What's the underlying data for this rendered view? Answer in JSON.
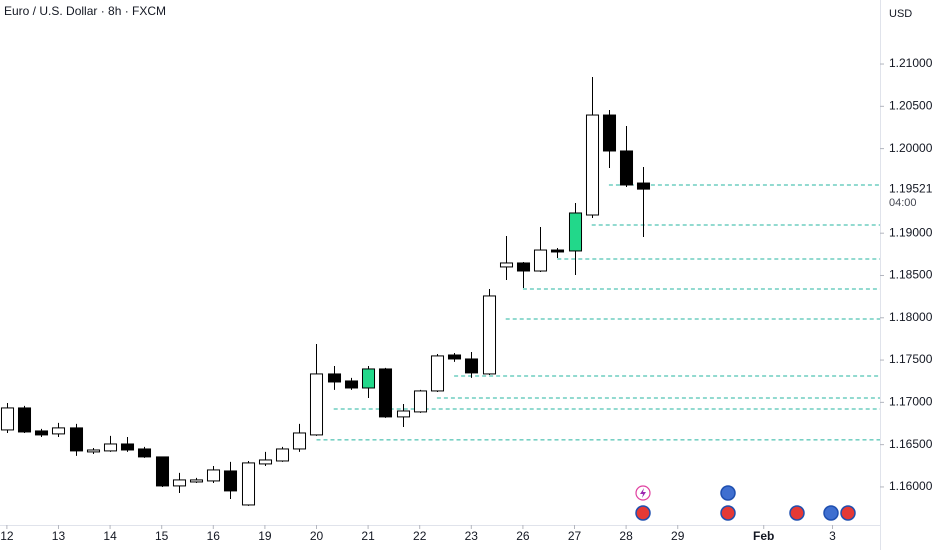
{
  "chart_data": {
    "type": "candlestick",
    "title": "Euro / U.S. Dollar · 8h · FXCM",
    "currency": "USD",
    "x": [
      0,
      1,
      2,
      3,
      4,
      5,
      6,
      7,
      8,
      9,
      10,
      11,
      12,
      13,
      14,
      15,
      16,
      17,
      18,
      19,
      20,
      21,
      22,
      23,
      24,
      25,
      26,
      27,
      28,
      29,
      30,
      31,
      32,
      33,
      34,
      35,
      36,
      37
    ],
    "open": [
      1.16674,
      1.16934,
      1.16662,
      1.16627,
      1.16698,
      1.16414,
      1.16426,
      1.16508,
      1.16449,
      1.16355,
      1.16012,
      1.16059,
      1.16071,
      1.16189,
      1.15787,
      1.16272,
      1.16307,
      1.16449,
      1.16615,
      1.17336,
      1.17253,
      1.1717,
      1.17395,
      1.16828,
      1.16887,
      1.17135,
      1.1756,
      1.17513,
      1.17336,
      1.18601,
      1.18648,
      1.18553,
      1.18801,
      1.1879,
      1.19215,
      1.20397,
      1.19972,
      1.19593
    ],
    "high": [
      1.16993,
      1.16958,
      1.16686,
      1.16757,
      1.16745,
      1.16461,
      1.16603,
      1.16591,
      1.16473,
      1.1636,
      1.16166,
      1.16107,
      1.16248,
      1.16296,
      1.16307,
      1.16414,
      1.16473,
      1.16745,
      1.1769,
      1.1743,
      1.17289,
      1.1743,
      1.17407,
      1.16981,
      1.17147,
      1.17572,
      1.17584,
      1.17596,
      1.1834,
      1.18967,
      1.1866,
      1.19073,
      1.18825,
      1.19357,
      1.20846,
      1.20456,
      1.20267,
      1.19783
    ],
    "low": [
      1.16638,
      1.16638,
      1.16591,
      1.16591,
      1.16367,
      1.1639,
      1.16414,
      1.16414,
      1.16343,
      1.16,
      1.15929,
      1.16047,
      1.16047,
      1.15858,
      1.15776,
      1.16248,
      1.16296,
      1.16414,
      1.16603,
      1.17147,
      1.17147,
      1.17052,
      1.16816,
      1.16709,
      1.16875,
      1.17123,
      1.17478,
      1.17289,
      1.17324,
      1.18447,
      1.18352,
      1.18541,
      1.18707,
      1.18506,
      1.1918,
      1.19771,
      1.19546,
      1.18955
    ],
    "close": [
      1.16934,
      1.1665,
      1.16615,
      1.16698,
      1.16426,
      1.16437,
      1.16508,
      1.16437,
      1.16355,
      1.16012,
      1.16083,
      1.16083,
      1.16201,
      1.15953,
      1.16284,
      1.16319,
      1.16449,
      1.16638,
      1.17336,
      1.17241,
      1.1717,
      1.17395,
      1.16828,
      1.16898,
      1.17135,
      1.17549,
      1.17513,
      1.17348,
      1.18258,
      1.18648,
      1.18553,
      1.18801,
      1.18778,
      1.19239,
      1.20397,
      1.19972,
      1.1957,
      1.19521
    ],
    "colors": [
      "#ffffff",
      "#000000",
      "#000000",
      "#ffffff",
      "#000000",
      "#ffffff",
      "#ffffff",
      "#000000",
      "#000000",
      "#000000",
      "#ffffff",
      "#ffffff",
      "#ffffff",
      "#000000",
      "#ffffff",
      "#ffffff",
      "#ffffff",
      "#ffffff",
      "#ffffff",
      "#000000",
      "#000000",
      "#22d88a",
      "#000000",
      "#ffffff",
      "#ffffff",
      "#ffffff",
      "#000000",
      "#000000",
      "#ffffff",
      "#ffffff",
      "#000000",
      "#ffffff",
      "#000000",
      "#22d88a",
      "#ffffff",
      "#000000",
      "#000000",
      "#000000"
    ],
    "levels": [
      {
        "value": 1.1957,
        "start": 35
      },
      {
        "value": 1.19097,
        "start": 34
      },
      {
        "value": 1.18695,
        "start": 32
      },
      {
        "value": 1.1834,
        "start": 30
      },
      {
        "value": 1.17986,
        "start": 29
      },
      {
        "value": 1.17312,
        "start": 26
      },
      {
        "value": 1.17052,
        "start": 25
      },
      {
        "value": 1.16922,
        "start": 19
      },
      {
        "value": 1.16556,
        "start": 18
      }
    ],
    "level_color": "#26b5a0",
    "last_price_label": "1.19521",
    "countdown": "04:00",
    "xlim": [
      -0.4,
      50.76
    ],
    "ylim": [
      1.1555,
      1.21757
    ],
    "xticks": [
      {
        "value": 0,
        "label": "12"
      },
      {
        "value": 3,
        "label": "13"
      },
      {
        "value": 6,
        "label": "14"
      },
      {
        "value": 9,
        "label": "15"
      },
      {
        "value": 12,
        "label": "16"
      },
      {
        "value": 15,
        "label": "19"
      },
      {
        "value": 18,
        "label": "20"
      },
      {
        "value": 21,
        "label": "21"
      },
      {
        "value": 24,
        "label": "22"
      },
      {
        "value": 27,
        "label": "23"
      },
      {
        "value": 30,
        "label": "26"
      },
      {
        "value": 33,
        "label": "27"
      },
      {
        "value": 36,
        "label": "28"
      },
      {
        "value": 39,
        "label": "29"
      },
      {
        "value": 44,
        "label": "Feb"
      },
      {
        "value": 48,
        "label": "3"
      }
    ],
    "yticks": [
      {
        "value": 1.16,
        "label": "1.16000"
      },
      {
        "value": 1.165,
        "label": "1.16500"
      },
      {
        "value": 1.17,
        "label": "1.17000"
      },
      {
        "value": 1.175,
        "label": "1.17500"
      },
      {
        "value": 1.18,
        "label": "1.18000"
      },
      {
        "value": 1.185,
        "label": "1.18500"
      },
      {
        "value": 1.19,
        "label": "1.19000"
      },
      {
        "value": 1.2,
        "label": "1.20000"
      },
      {
        "value": 1.205,
        "label": "1.20500"
      },
      {
        "value": 1.21,
        "label": "1.21000"
      }
    ]
  }
}
